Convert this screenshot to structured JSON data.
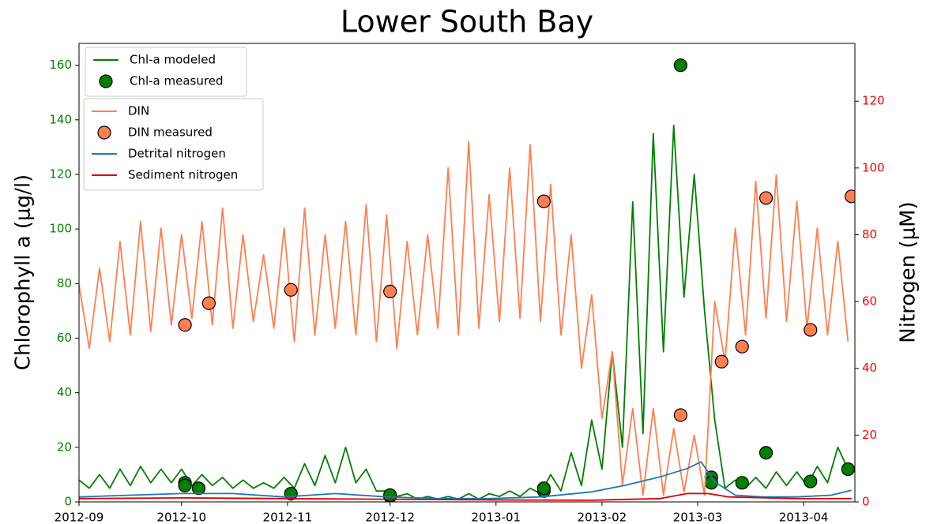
{
  "chart_data": {
    "type": "line",
    "title": "Lower South Bay",
    "ylabel": "Chlorophyll a (μg/l)",
    "y2label": "Nitrogen (μM)",
    "xlim": [
      0,
      227
    ],
    "xticks": [
      {
        "value": 0,
        "label": "2012-09"
      },
      {
        "value": 30,
        "label": "2012-10"
      },
      {
        "value": 61,
        "label": "2012-11"
      },
      {
        "value": 91,
        "label": "2012-12"
      },
      {
        "value": 122,
        "label": "2013-01"
      },
      {
        "value": 153,
        "label": "2013-02"
      },
      {
        "value": 181,
        "label": "2013-03"
      },
      {
        "value": 212,
        "label": "2013-04"
      }
    ],
    "ylim": [
      0,
      168
    ],
    "yticks": [
      0,
      20,
      40,
      60,
      80,
      100,
      120,
      140,
      160
    ],
    "ycolor": "green",
    "y2lim": [
      0,
      137.3
    ],
    "y2ticks": [
      0,
      20,
      40,
      60,
      80,
      100,
      120
    ],
    "y2color": "red",
    "x": [
      0,
      3,
      6,
      9,
      12,
      15,
      18,
      21,
      24,
      27,
      30,
      33,
      36,
      39,
      42,
      45,
      48,
      51,
      54,
      57,
      60,
      63,
      66,
      69,
      72,
      75,
      78,
      81,
      84,
      87,
      90,
      93,
      96,
      99,
      102,
      105,
      108,
      111,
      114,
      117,
      120,
      123,
      126,
      129,
      132,
      135,
      138,
      141,
      144,
      147,
      150,
      153,
      156,
      159,
      162,
      165,
      168,
      171,
      174,
      177,
      180,
      183,
      186,
      189,
      192,
      195,
      198,
      201,
      204,
      207,
      210,
      213,
      216,
      219,
      222,
      225
    ],
    "series": [
      {
        "name": "Chl-a modeled",
        "kind": "line",
        "color": "#007f00",
        "axis": "y",
        "values": [
          8,
          5,
          10,
          5,
          12,
          6,
          13,
          7,
          12,
          7,
          12,
          6,
          10,
          6,
          9,
          5,
          8,
          5,
          7,
          5,
          9,
          5,
          14,
          6,
          17,
          7,
          20,
          7,
          12,
          4,
          4,
          2,
          3,
          1,
          2,
          1,
          2,
          1,
          3,
          1,
          3,
          2,
          4,
          2,
          5,
          3,
          10,
          4,
          18,
          6,
          30,
          12,
          55,
          20,
          110,
          25,
          135,
          55,
          138,
          75,
          120,
          70,
          30,
          5,
          8,
          5,
          9,
          5,
          11,
          6,
          11,
          6,
          13,
          7,
          20,
          12
        ]
      },
      {
        "name": "Chl-a measured",
        "kind": "scatter",
        "color": "#007f00",
        "axis": "y",
        "x": [
          31,
          31,
          35,
          62,
          91,
          91,
          136,
          136,
          176,
          185,
          185,
          194,
          201,
          214,
          225
        ],
        "values": [
          7,
          6,
          5,
          3,
          2,
          2.5,
          4,
          5,
          160,
          9,
          7,
          7,
          18,
          7.5,
          12
        ]
      },
      {
        "name": "DIN",
        "kind": "line",
        "color": "#ff7f50",
        "axis": "y2",
        "values": [
          65,
          46,
          70,
          48,
          78,
          50,
          84,
          51,
          82,
          53,
          80,
          55,
          84,
          53,
          88,
          52,
          80,
          54,
          74,
          52,
          82,
          48,
          88,
          50,
          80,
          52,
          84,
          50,
          89,
          48,
          86,
          46,
          78,
          50,
          80,
          52,
          100,
          50,
          108,
          52,
          92,
          54,
          100,
          55,
          107,
          54,
          95,
          50,
          80,
          40,
          62,
          25,
          45,
          5,
          28,
          2,
          28,
          2,
          22,
          3,
          20,
          2,
          60,
          42,
          82,
          50,
          96,
          55,
          98,
          54,
          90,
          52,
          82,
          50,
          78,
          48
        ]
      },
      {
        "name": "DIN measured",
        "kind": "scatter",
        "color": "#ff7f50",
        "axis": "y2",
        "x": [
          31,
          38,
          62,
          91,
          136,
          176,
          188,
          194,
          201,
          214,
          226
        ],
        "values": [
          53,
          59.5,
          63.5,
          63,
          90,
          26,
          42,
          46.5,
          91,
          51.5,
          91.5
        ]
      },
      {
        "name": "Detrital nitrogen",
        "kind": "line",
        "color": "#1f77b4",
        "axis": "y2",
        "x": [
          0,
          15,
          30,
          45,
          60,
          75,
          90,
          105,
          120,
          135,
          150,
          160,
          170,
          178,
          182,
          186,
          192,
          200,
          210,
          220,
          226
        ],
        "values": [
          1.5,
          2,
          2.5,
          2.5,
          1.5,
          2.5,
          1.5,
          1,
          1,
          1.5,
          3,
          5,
          7.5,
          10,
          12,
          6,
          2,
          1.5,
          1.5,
          2,
          3.5
        ]
      },
      {
        "name": "Sediment nitrogen",
        "kind": "line",
        "color": "#e00000",
        "axis": "y2",
        "x": [
          0,
          30,
          60,
          90,
          120,
          150,
          170,
          178,
          184,
          190,
          210,
          226
        ],
        "values": [
          1,
          1.2,
          1,
          0.8,
          0.6,
          0.5,
          1,
          2.5,
          2.5,
          1.5,
          1,
          1
        ]
      }
    ]
  }
}
